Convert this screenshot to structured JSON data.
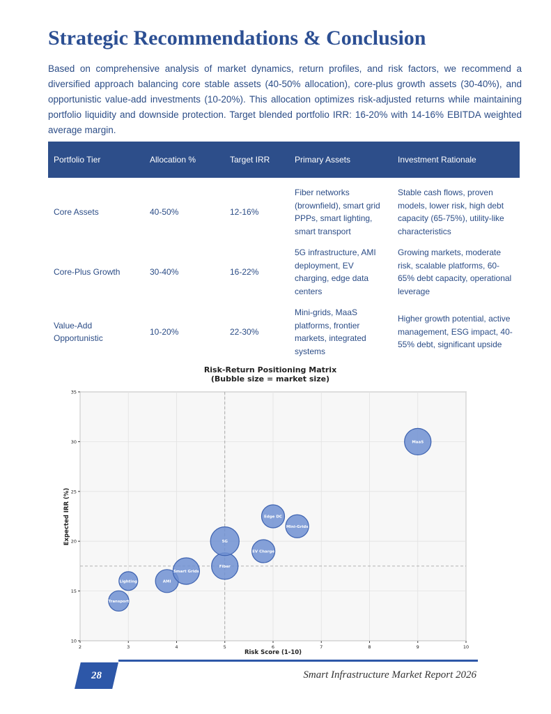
{
  "header": {
    "title": "Strategic Recommendations & Conclusion"
  },
  "intro": "Based on comprehensive analysis of market dynamics, return profiles, and risk factors, we recommend a diversified approach balancing core stable assets (40-50% allocation), core-plus growth assets (30-40%), and opportunistic value-add investments (10-20%). This allocation optimizes risk-adjusted returns while maintaining portfolio liquidity and downside protection. Target blended portfolio IRR: 16-20% with 14-16% EBITDA weighted average margin.",
  "table": {
    "columns": [
      "Portfolio Tier",
      "Allocation %",
      "Target IRR",
      "Primary Assets",
      "Investment Rationale"
    ],
    "rows": [
      [
        "Core Assets",
        "40-50%",
        "12-16%",
        "Fiber networks (brownfield), smart grid PPPs, smart lighting, smart transport",
        "Stable cash flows, proven models, lower risk, high debt capacity (65-75%), utility-like characteristics"
      ],
      [
        "Core-Plus Growth",
        "30-40%",
        "16-22%",
        "5G infrastructure, AMI deployment, EV charging, edge data centers",
        "Growing markets, moderate risk, scalable platforms, 60-65% debt capacity, operational leverage"
      ],
      [
        "Value-Add Opportunistic",
        "10-20%",
        "22-30%",
        "Mini-grids, MaaS platforms, frontier markets, integrated systems",
        "Higher growth potential, active management, ESG impact, 40-55% debt, significant upside"
      ]
    ]
  },
  "chart_data": {
    "type": "scatter",
    "title": "Risk-Return Positioning Matrix",
    "subtitle": "(Bubble size = market size)",
    "x_label": "Risk Score (1-10)",
    "y_label": "Expected IRR (%)",
    "labels": [
      "Transport",
      "Lighting",
      "AMI",
      "Smart Grids",
      "Fiber",
      "5G",
      "EV Charge",
      "Edge DC",
      "Mini-Grids",
      "MaaS"
    ],
    "x": [
      2.8,
      3,
      3.8,
      4.2,
      5,
      5,
      5.8,
      6,
      6.5,
      9
    ],
    "values": [
      14,
      16,
      16,
      17,
      17.5,
      20,
      19,
      22.5,
      21.5,
      30
    ],
    "sizes": [
      700,
      600,
      900,
      1200,
      1200,
      1400,
      900,
      900,
      900,
      1200
    ],
    "color": "#7090d2",
    "edge_color": "#3d62b0",
    "xlim": [
      2,
      10
    ],
    "xticks": [
      2,
      3,
      4,
      5,
      6,
      7,
      8,
      9,
      10
    ],
    "ylim": [
      10,
      35
    ],
    "yticks": [
      10,
      15,
      20,
      25,
      30,
      35
    ],
    "ref_x": 5,
    "ref_y": 17.5,
    "grid": true
  },
  "footer": {
    "page_number": "28",
    "report_title": "Smart Infrastructure Market Report 2026"
  }
}
